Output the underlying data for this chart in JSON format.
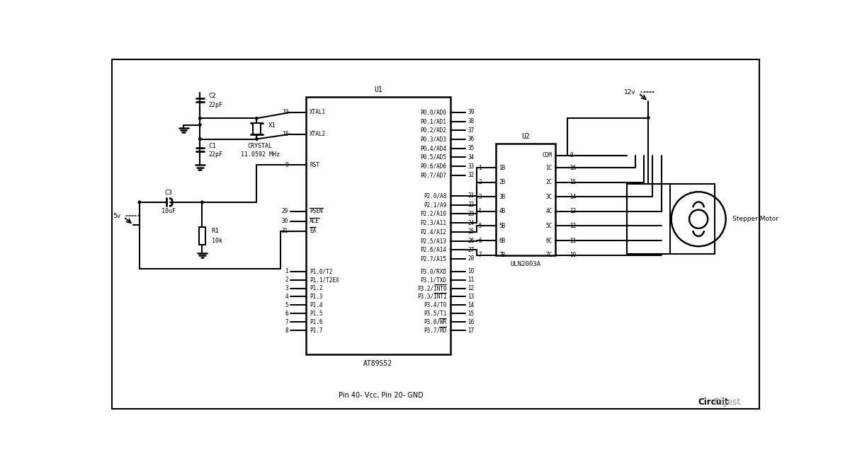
{
  "bg": "#ffffff",
  "lc": "#000000",
  "lw": 1.5,
  "u1_chip": "AT89S52",
  "u2_chip": "ULN2003A",
  "footer": "Pin 40- Vcc, Pin 20- GND",
  "brand_bold": "Circuit",
  "brand_normal": "Digest",
  "motor_label": "Stepper Motor",
  "crystal_freq": "11.0592 MHz",
  "crystal_name": "CRYSTAL",
  "x1": "X1",
  "c1": "C1",
  "c1v": "22pF",
  "c2": "C2",
  "c2v": "22pF",
  "c3": "C3",
  "c3v": "10uF",
  "r1": "R1",
  "r1v": "10k",
  "v5": "5v",
  "v12": "12v",
  "u1_left_pins": [
    [
      19,
      "XTAL1"
    ],
    [
      18,
      "XTAL2"
    ],
    [
      9,
      "RST"
    ],
    [
      29,
      "PSEN"
    ],
    [
      30,
      "ALE"
    ],
    [
      31,
      "EA"
    ],
    [
      1,
      "P1.0/T2"
    ],
    [
      2,
      "P1.1/T2EX"
    ],
    [
      3,
      "P1.2"
    ],
    [
      4,
      "P1.3"
    ],
    [
      5,
      "P1.4"
    ],
    [
      6,
      "P1.5"
    ],
    [
      7,
      "P1.6"
    ],
    [
      8,
      "P1.7"
    ]
  ],
  "u1_right_p0": [
    [
      39,
      "P0.0/AD0"
    ],
    [
      38,
      "P0.1/AD1"
    ],
    [
      37,
      "P0.2/AD2"
    ],
    [
      36,
      "P0.3/AD3"
    ],
    [
      35,
      "P0.4/AD4"
    ],
    [
      34,
      "P0.5/AD5"
    ],
    [
      33,
      "P0.6/AD6"
    ],
    [
      32,
      "P0.7/AD7"
    ]
  ],
  "u1_right_p2": [
    [
      21,
      "P2.0/A8"
    ],
    [
      22,
      "P2.1/A9"
    ],
    [
      23,
      "P2.2/A10"
    ],
    [
      24,
      "P2.3/A11"
    ],
    [
      25,
      "P2.4/A12"
    ],
    [
      26,
      "P2.5/A13"
    ],
    [
      27,
      "P2.6/A14"
    ],
    [
      28,
      "P2.7/A15"
    ]
  ],
  "u1_right_p3": [
    [
      10,
      "P3.0/RXD"
    ],
    [
      11,
      "P3.1/TXD"
    ],
    [
      12,
      "P3.2/INT0"
    ],
    [
      13,
      "P3.3/INT1"
    ],
    [
      14,
      "P3.4/T0"
    ],
    [
      15,
      "P3.5/T1"
    ],
    [
      16,
      "P3.6/WR"
    ],
    [
      17,
      "P3.7/RD"
    ]
  ],
  "u2_left": [
    "1B",
    "2B",
    "3B",
    "4B",
    "5B",
    "6B",
    "7B"
  ],
  "u2_right": [
    "1C",
    "2C",
    "3C",
    "4C",
    "5C",
    "6C",
    "7C"
  ],
  "u2_lnums": [
    1,
    2,
    3,
    4,
    5,
    6,
    7
  ],
  "u2_rnums": [
    16,
    15,
    14,
    13,
    12,
    11,
    10
  ],
  "u2_com_num": 9,
  "overline_left": [
    [
      29,
      "PSEN"
    ],
    [
      30,
      "ALE"
    ],
    [
      31,
      "EA"
    ]
  ],
  "overline_right": [
    [
      12,
      "INT0"
    ],
    [
      13,
      "INT1"
    ],
    [
      16,
      "WR"
    ],
    [
      17,
      "RD"
    ]
  ]
}
